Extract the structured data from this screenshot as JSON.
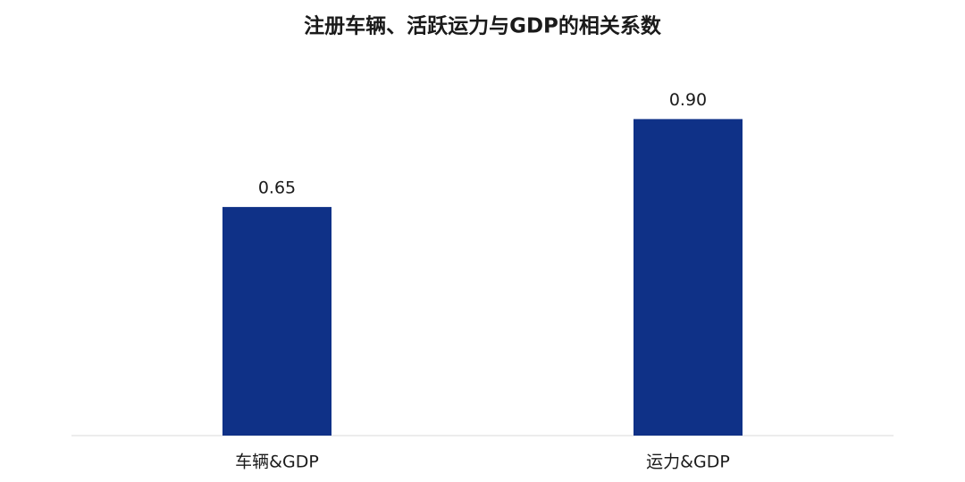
{
  "chart_data": {
    "type": "bar",
    "title": "注册车辆、活跃运力与GDP的相关系数",
    "categories": [
      "车辆&GDP",
      "运力&GDP"
    ],
    "values": [
      0.65,
      0.9
    ],
    "value_labels": [
      "0.65",
      "0.90"
    ],
    "color": "#0f3187",
    "ylim": [
      0,
      1
    ]
  }
}
